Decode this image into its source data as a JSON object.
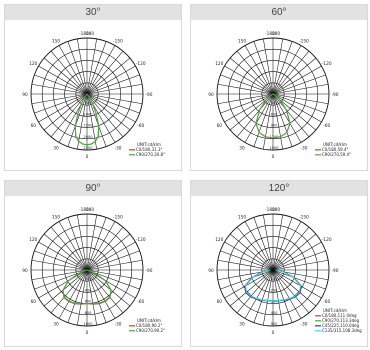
{
  "colors": {
    "grid": "#111111",
    "title_bg": "#e2e2e2",
    "red": "#e0323c",
    "green": "#3cb43c",
    "blue": "#2c3ca0",
    "cyan": "#3cd6e6"
  },
  "chart_data": [
    {
      "type": "polar-line",
      "title": "30°",
      "unit": "UNIT:cd/klm",
      "angle_labels": [
        "-180",
        "-150",
        "-120",
        "-90",
        "-60",
        "-30",
        "0",
        "30",
        "60",
        "90",
        "120",
        "150",
        "180"
      ],
      "radial_labels": [
        "500",
        "1000",
        "1500",
        "2000",
        "2500"
      ],
      "rmax": 2700,
      "angles": [
        0,
        5,
        10,
        15,
        20,
        25,
        30,
        35,
        40,
        45
      ],
      "series": [
        {
          "name": "C0/180,31.3°",
          "color": "red",
          "values": [
            2450,
            2420,
            2320,
            2100,
            1650,
            1050,
            500,
            200,
            60,
            0
          ]
        },
        {
          "name": "C90/270,30.8°",
          "color": "green",
          "values": [
            2450,
            2420,
            2320,
            2100,
            1650,
            1050,
            500,
            200,
            60,
            0
          ]
        }
      ]
    },
    {
      "type": "polar-line",
      "title": "60°",
      "unit": "UNIT:cd/klm",
      "angle_labels": [
        "-180",
        "-150",
        "-120",
        "-90",
        "-60",
        "-30",
        "0",
        "30",
        "60",
        "90",
        "120",
        "150",
        "180"
      ],
      "radial_labels": [
        "300",
        "600",
        "900",
        "1200",
        "1500"
      ],
      "rmax": 1650,
      "angles": [
        0,
        10,
        20,
        30,
        40,
        50,
        60,
        70
      ],
      "series": [
        {
          "name": "C0/180,59.4°",
          "color": "red",
          "values": [
            1300,
            1280,
            1200,
            1000,
            620,
            250,
            60,
            0
          ]
        },
        {
          "name": "C90/270,59.4°",
          "color": "green",
          "values": [
            1300,
            1280,
            1200,
            1000,
            620,
            250,
            60,
            0
          ]
        }
      ]
    },
    {
      "type": "polar-line",
      "title": "90°",
      "unit": "UNIT:cd/klm",
      "angle_labels": [
        "-180",
        "-150",
        "-120",
        "-90",
        "-60",
        "-30",
        "0",
        "30",
        "60",
        "90",
        "120",
        "150",
        "180"
      ],
      "radial_labels": [
        "200",
        "400",
        "600",
        "800",
        "1000"
      ],
      "rmax": 1000,
      "angles": [
        0,
        10,
        20,
        30,
        40,
        50,
        60,
        70,
        80
      ],
      "series": [
        {
          "name": "C0/180,90.2°",
          "color": "red",
          "values": [
            600,
            620,
            640,
            650,
            640,
            560,
            380,
            120,
            0
          ]
        },
        {
          "name": "C90/270,90.2°",
          "color": "green",
          "values": [
            600,
            615,
            630,
            640,
            630,
            560,
            380,
            120,
            0
          ]
        }
      ]
    },
    {
      "type": "polar-line",
      "title": "120°",
      "unit": "UNIT:cd/klm",
      "angle_labels": [
        "-180",
        "-150",
        "-120",
        "-90",
        "-60",
        "-30",
        "0",
        "30",
        "60",
        "90",
        "120",
        "150",
        "180"
      ],
      "radial_labels": [
        "100",
        "200",
        "300",
        "400",
        "500"
      ],
      "rmax": 600,
      "angles": [
        0,
        10,
        20,
        30,
        40,
        50,
        60,
        70,
        80,
        90
      ],
      "series": [
        {
          "name": "C0/180,111.0deg",
          "color": "red",
          "values": [
            330,
            335,
            345,
            360,
            375,
            380,
            350,
            240,
            120,
            40
          ]
        },
        {
          "name": "C90/270,113.3deg",
          "color": "green",
          "values": [
            330,
            333,
            342,
            355,
            370,
            375,
            345,
            235,
            115,
            40
          ]
        },
        {
          "name": "C45/225,110.0deg",
          "color": "blue",
          "values": [
            330,
            334,
            343,
            358,
            372,
            378,
            348,
            238,
            118,
            40
          ]
        },
        {
          "name": "C135/315,108.3deg",
          "color": "cyan",
          "values": [
            330,
            332,
            340,
            352,
            365,
            370,
            340,
            230,
            110,
            35
          ]
        }
      ]
    }
  ]
}
